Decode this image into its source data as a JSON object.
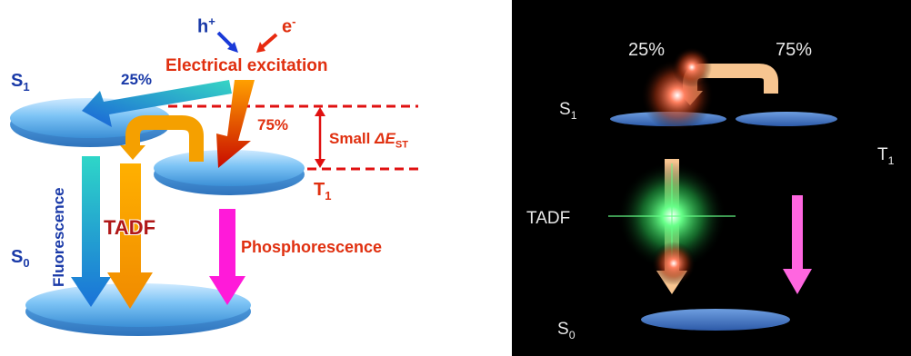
{
  "left_panel": {
    "carrier_hole": "h",
    "carrier_hole_charge": "+",
    "carrier_electron": "e",
    "carrier_electron_charge": "-",
    "electrical_excitation": "Electrical excitation",
    "s1_letter": "S",
    "s1_sub": "1",
    "t1_letter": "T",
    "t1_sub": "1",
    "s0_letter": "S",
    "s0_sub": "0",
    "pct_singlet": "25%",
    "pct_triplet": "75%",
    "gap_prefix": "Small ",
    "gap_symbol": "ΔE",
    "gap_sub": "ST",
    "fluorescence": "Fluorescence",
    "tadf": "TADF",
    "phosphorescence": "Phosphorescence",
    "colors": {
      "excitation_text": "#e03010",
      "state_label": "#1a3aa8",
      "gap_line": "#e01010",
      "phosphorescence_arrow": "#ff1ad9",
      "tadf_arrow": "#f5a000",
      "fluorescence_arrow": "#1ea0d8"
    }
  },
  "right_panel": {
    "pct_singlet": "25%",
    "pct_triplet": "75%",
    "s1_letter": "S",
    "s1_sub": "1",
    "t1_letter": "T",
    "t1_sub": "1",
    "s0_letter": "S",
    "s0_sub": "0",
    "tadf": "TADF",
    "colors": {
      "background": "#000000",
      "arrow_peach": "#f7c590",
      "arrow_pink": "#ff66e0",
      "glow_green": "#33ff66"
    }
  }
}
